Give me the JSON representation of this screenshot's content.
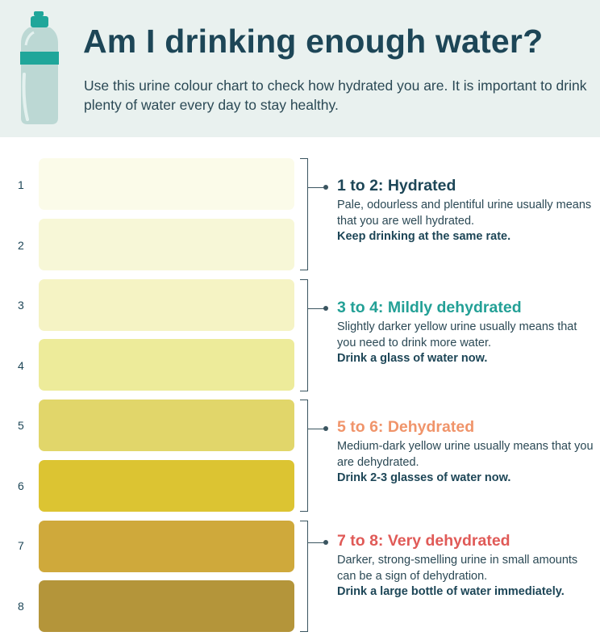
{
  "header": {
    "title": "Am I drinking enough water?",
    "subtitle": "Use this urine colour chart to check how hydrated you are. It is important to drink plenty of water every day to stay healthy.",
    "icon": "water-bottle-icon"
  },
  "scale": [
    {
      "number": "1",
      "color": "#fbfbe9"
    },
    {
      "number": "2",
      "color": "#f7f7d7"
    },
    {
      "number": "3",
      "color": "#f5f3c4"
    },
    {
      "number": "4",
      "color": "#edeb9a"
    },
    {
      "number": "5",
      "color": "#e1d66a"
    },
    {
      "number": "6",
      "color": "#dcc432"
    },
    {
      "number": "7",
      "color": "#cfa93b"
    },
    {
      "number": "8",
      "color": "#b4953a"
    }
  ],
  "groups": [
    {
      "title": "1 to 2: Hydrated",
      "color": "#1d4657",
      "description": "Pale, odourless and plentiful urine usually means that you are well hydrated.",
      "action": "Keep drinking at the same rate."
    },
    {
      "title": "3 to 4: Mildly dehydrated",
      "color": "#23a096",
      "description": "Slightly darker yellow urine usually means that you need to drink more water.",
      "action": "Drink a glass of water now."
    },
    {
      "title": "5 to 6: Dehydrated",
      "color": "#f0946a",
      "description": "Medium-dark yellow urine usually means that you are dehydrated.",
      "action": "Drink 2-3 glasses of water now."
    },
    {
      "title": "7 to 8: Very dehydrated",
      "color": "#e05a57",
      "description": "Darker, strong-smelling urine in small amounts can be a sign of dehydration.",
      "action": "Drink a large bottle of water immediately."
    }
  ]
}
